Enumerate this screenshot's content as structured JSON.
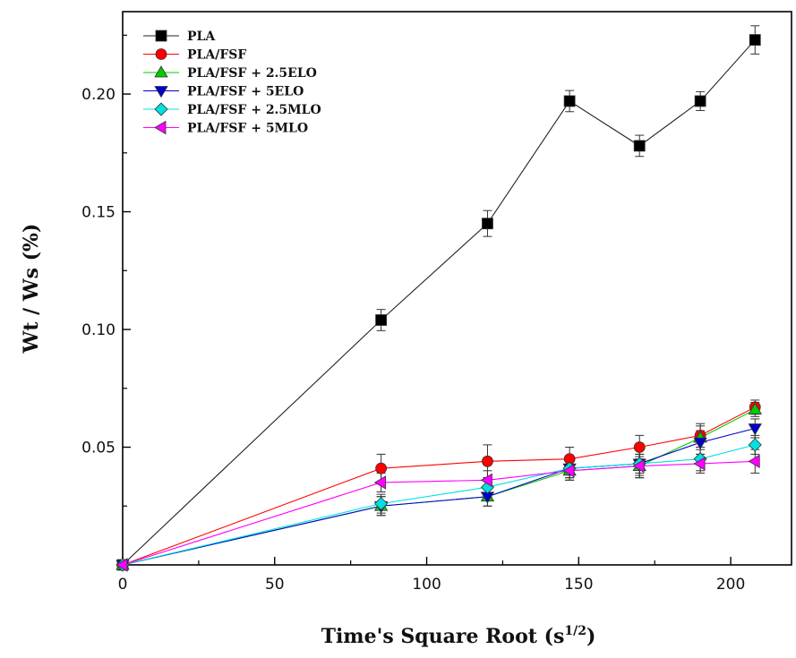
{
  "chart_data": {
    "type": "line",
    "title": "",
    "xlabel": "Time's Square Root (s",
    "xlabel_sup": "1/2",
    "xlabel_end": ")",
    "ylabel": "Wt / Ws (%)",
    "xlim": [
      0,
      220
    ],
    "ylim": [
      0,
      0.235
    ],
    "xticks": [
      0,
      50,
      100,
      150,
      200
    ],
    "yticks": [
      0.05,
      0.1,
      0.15,
      0.2
    ],
    "xtick_labels": [
      "0",
      "50",
      "100",
      "150",
      "200"
    ],
    "ytick_labels": [
      "0.05",
      "0.10",
      "0.15",
      "0.20"
    ],
    "grid": false,
    "legend_position": "top-left",
    "x": [
      0,
      85,
      120,
      147,
      170,
      190,
      208
    ],
    "series": [
      {
        "name": "PLA",
        "marker": "square",
        "color": "#000000",
        "values": [
          0,
          0.104,
          0.145,
          0.197,
          0.178,
          0.197,
          0.223
        ],
        "errors": [
          0,
          0.0045,
          0.0055,
          0.0045,
          0.0045,
          0.004,
          0.006
        ]
      },
      {
        "name": "PLA/FSF",
        "marker": "circle",
        "color": "#ff0000",
        "values": [
          0,
          0.041,
          0.044,
          0.045,
          0.05,
          0.055,
          0.067
        ],
        "errors": [
          0,
          0.006,
          0.007,
          0.005,
          0.005,
          0.005,
          0.003
        ]
      },
      {
        "name": "PLA/FSF + 2.5ELO",
        "marker": "triangle-up",
        "color": "#00cc00",
        "values": [
          0,
          0.025,
          0.029,
          0.04,
          0.042,
          0.054,
          0.066
        ],
        "errors": [
          0,
          0.004,
          0.004,
          0.004,
          0.004,
          0.005,
          0.003
        ]
      },
      {
        "name": "PLA/FSF + 5ELO",
        "marker": "triangle-down",
        "color": "#0000cc",
        "values": [
          0,
          0.025,
          0.029,
          0.041,
          0.043,
          0.052,
          0.058
        ],
        "errors": [
          0,
          0.004,
          0.004,
          0.004,
          0.006,
          0.005,
          0.004
        ]
      },
      {
        "name": "PLA/FSF + 2.5MLO",
        "marker": "diamond",
        "color": "#00e0e0",
        "values": [
          0,
          0.026,
          0.033,
          0.041,
          0.043,
          0.045,
          0.051
        ],
        "errors": [
          0,
          0.004,
          0.004,
          0.004,
          0.004,
          0.005,
          0.004
        ]
      },
      {
        "name": "PLA/FSF + 5MLO",
        "marker": "triangle-left",
        "color": "#ff00ff",
        "values": [
          0,
          0.035,
          0.036,
          0.04,
          0.042,
          0.043,
          0.044
        ],
        "errors": [
          0,
          0.004,
          0.004,
          0.004,
          0.005,
          0.004,
          0.005
        ]
      }
    ]
  }
}
